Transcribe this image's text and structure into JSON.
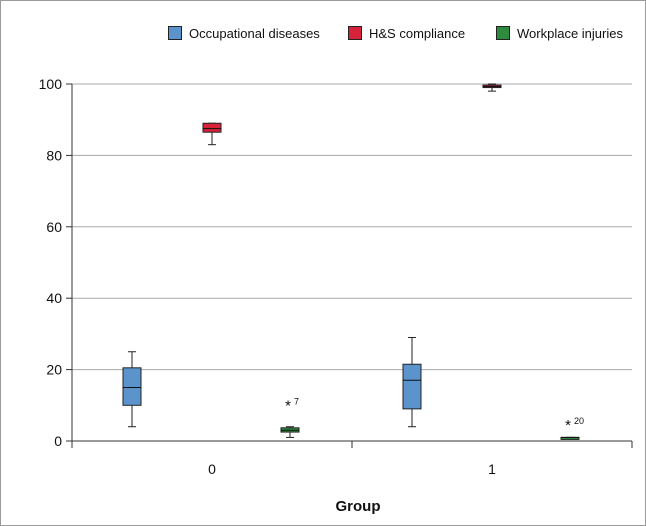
{
  "chart_data": {
    "type": "boxplot",
    "xlabel": "Group",
    "ylabel": "",
    "ylim": [
      0,
      100
    ],
    "yticks": [
      0,
      20,
      40,
      60,
      80,
      100
    ],
    "categories": [
      "0",
      "1"
    ],
    "grid": true,
    "legend_position": "top-right",
    "series": [
      {
        "name": "Occupational diseases",
        "color": "#5b93cc",
        "boxes": [
          {
            "category": "0",
            "min": 4,
            "q1": 10,
            "median": 15,
            "q3": 20.5,
            "max": 25
          },
          {
            "category": "1",
            "min": 4,
            "q1": 9,
            "median": 17,
            "q3": 21.5,
            "max": 29
          }
        ]
      },
      {
        "name": "H&S compliance",
        "color": "#d6233a",
        "boxes": [
          {
            "category": "0",
            "min": 83,
            "q1": 86.5,
            "median": 87.5,
            "q3": 89,
            "max": 89
          },
          {
            "category": "1",
            "min": 98,
            "q1": 99,
            "median": 99.3,
            "q3": 99.7,
            "max": 100
          }
        ]
      },
      {
        "name": "Workplace injuries",
        "color": "#2e8b3e",
        "boxes": [
          {
            "category": "0",
            "min": 1,
            "q1": 2.5,
            "median": 3,
            "q3": 3.7,
            "max": 4
          },
          {
            "category": "1",
            "min": 1,
            "q1": 1,
            "median": 1,
            "q3": 1,
            "max": 1
          }
        ]
      }
    ],
    "outliers": [
      {
        "category": "0",
        "series": "Workplace injuries",
        "value": 10.5,
        "label": "7"
      },
      {
        "category": "1",
        "series": "Workplace injuries",
        "value": 5,
        "label": "20"
      }
    ]
  }
}
